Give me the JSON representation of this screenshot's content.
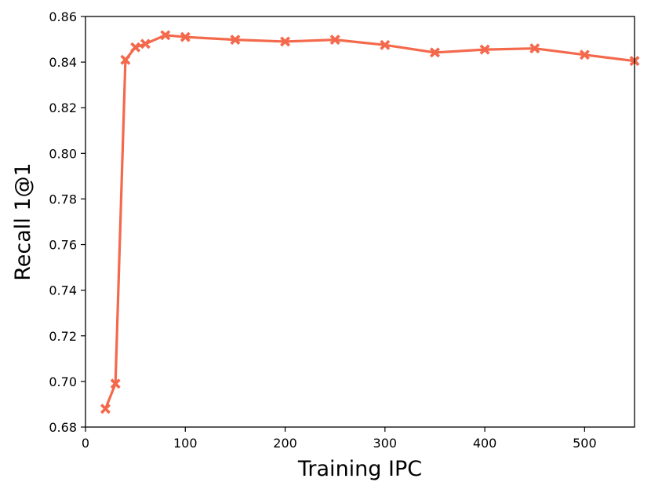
{
  "chart_data": {
    "type": "line",
    "title": "",
    "xlabel": "Training IPC",
    "ylabel": "Recall 1@1",
    "xlim": [
      0,
      550
    ],
    "ylim": [
      0.68,
      0.86
    ],
    "xticks": [
      0,
      100,
      200,
      300,
      400,
      500
    ],
    "xtick_labels": [
      "0",
      "100",
      "200",
      "300",
      "400",
      "500"
    ],
    "yticks": [
      0.68,
      0.7,
      0.72,
      0.74,
      0.76,
      0.78,
      0.8,
      0.82,
      0.84,
      0.86
    ],
    "ytick_labels": [
      "0.68",
      "0.70",
      "0.72",
      "0.74",
      "0.76",
      "0.78",
      "0.80",
      "0.82",
      "0.84",
      "0.86"
    ],
    "grid": false,
    "legend": "none",
    "series": [
      {
        "color": "#f4694c",
        "marker": "X",
        "x": [
          20,
          30,
          40,
          50,
          60,
          80,
          100,
          150,
          200,
          250,
          300,
          350,
          400,
          450,
          500,
          550
        ],
        "y": [
          0.688,
          0.699,
          0.841,
          0.8465,
          0.848,
          0.8518,
          0.851,
          0.8498,
          0.849,
          0.8498,
          0.8475,
          0.8442,
          0.8455,
          0.846,
          0.8432,
          0.8405
        ]
      }
    ]
  }
}
